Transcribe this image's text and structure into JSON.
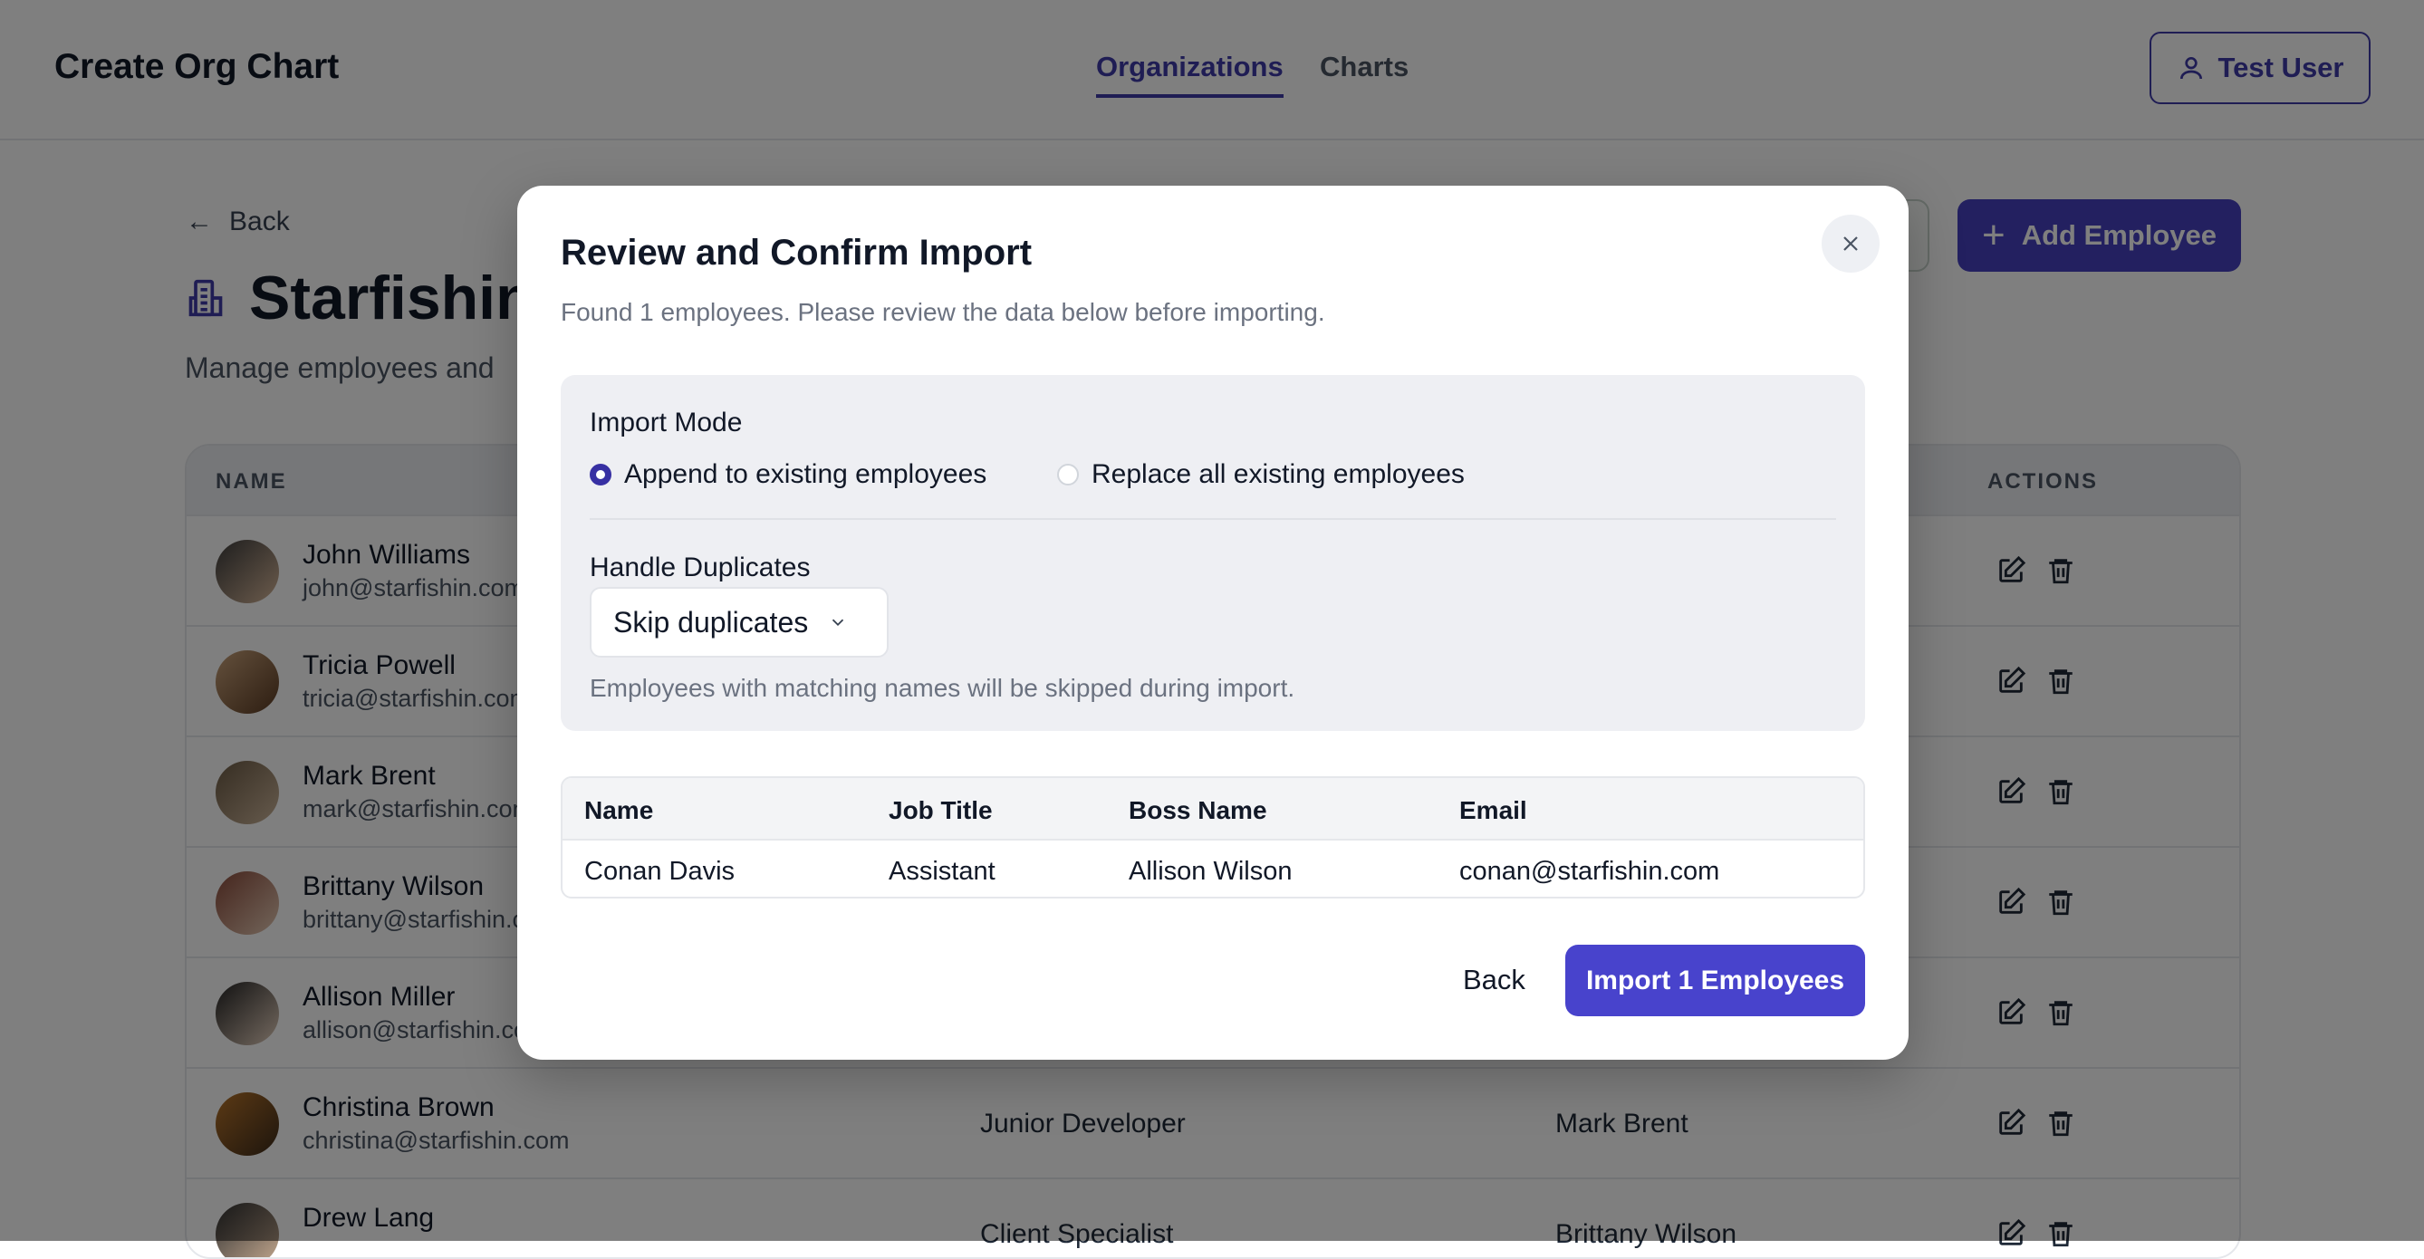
{
  "header": {
    "brand": "Create Org Chart",
    "nav": [
      {
        "label": "Organizations",
        "active": true
      },
      {
        "label": "Charts",
        "active": false
      }
    ],
    "user_label": "Test User"
  },
  "page": {
    "back_label": "Back",
    "title": "Starfishin",
    "subtitle": "Manage employees and",
    "add_employee_label": "Add Employee"
  },
  "table": {
    "columns": {
      "name": "NAME",
      "actions": "ACTIONS"
    },
    "rows": [
      {
        "name": "John Williams",
        "email": "john@starfishin.com",
        "job": "",
        "boss": ""
      },
      {
        "name": "Tricia Powell",
        "email": "tricia@starfishin.com",
        "job": "",
        "boss": ""
      },
      {
        "name": "Mark Brent",
        "email": "mark@starfishin.com",
        "job": "",
        "boss": ""
      },
      {
        "name": "Brittany Wilson",
        "email": "brittany@starfishin.com",
        "job": "",
        "boss": ""
      },
      {
        "name": "Allison Miller",
        "email": "allison@starfishin.com",
        "job": "",
        "boss": ""
      },
      {
        "name": "Christina Brown",
        "email": "christina@starfishin.com",
        "job": "Junior Developer",
        "boss": "Mark Brent"
      },
      {
        "name": "Drew Lang",
        "email": "",
        "job": "Client Specialist",
        "boss": "Brittany Wilson"
      }
    ]
  },
  "modal": {
    "title": "Review and Confirm Import",
    "subtitle": "Found 1 employees. Please review the data below before importing.",
    "import_mode_label": "Import Mode",
    "modes": [
      {
        "label": "Append to existing employees",
        "selected": true
      },
      {
        "label": "Replace all existing employees",
        "selected": false
      }
    ],
    "duplicates_label": "Handle Duplicates",
    "duplicates_value": "Skip duplicates",
    "duplicates_help": "Employees with matching names will be skipped during import.",
    "preview": {
      "columns": [
        "Name",
        "Job Title",
        "Boss Name",
        "Email"
      ],
      "rows": [
        [
          "Conan Davis",
          "Assistant",
          "Allison Wilson",
          "conan@starfishin.com"
        ]
      ]
    },
    "back_label": "Back",
    "import_label": "Import 1 Employees"
  },
  "colors": {
    "accent": "#4843cc",
    "overlay": "rgba(0,0,0,0.5)"
  }
}
